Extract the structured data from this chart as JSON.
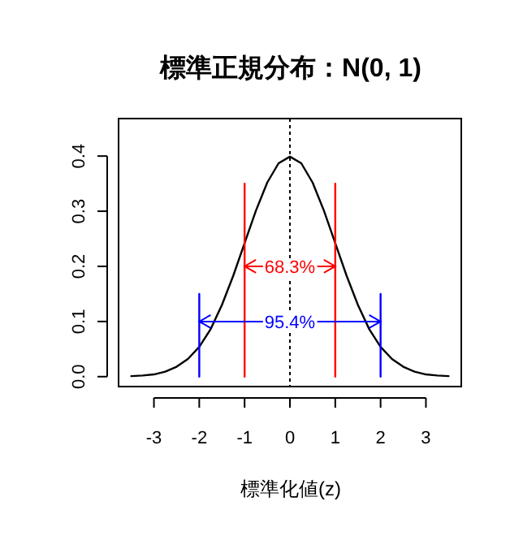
{
  "chart_data": {
    "type": "line",
    "title": "標準正規分布：N(0, 1)",
    "xlabel": "標準化値(z)",
    "xlim": [
      -3.78,
      3.78
    ],
    "ylim": [
      -0.018,
      0.468
    ],
    "xticks": [
      -3,
      -2,
      -1,
      0,
      1,
      2,
      3
    ],
    "yticks": [
      {
        "value": 0,
        "label": "0.0"
      },
      0.1,
      0.2,
      0.3,
      0.4
    ],
    "grid": false,
    "series": [
      {
        "color": "#000000",
        "line_style": "solid",
        "x": [
          -3.5,
          -3.25,
          -3,
          -2.75,
          -2.5,
          -2.25,
          -2,
          -1.75,
          -1.5,
          -1.25,
          -1,
          -0.75,
          -0.5,
          -0.25,
          0,
          0.25,
          0.5,
          0.75,
          1,
          1.25,
          1.5,
          1.75,
          2,
          2.25,
          2.5,
          2.75,
          3,
          3.25,
          3.5
        ],
        "values": [
          0.001,
          0.002,
          0.004,
          0.009,
          0.018,
          0.032,
          0.054,
          0.086,
          0.13,
          0.183,
          0.242,
          0.301,
          0.352,
          0.387,
          0.399,
          0.387,
          0.352,
          0.301,
          0.242,
          0.183,
          0.13,
          0.086,
          0.054,
          0.032,
          0.018,
          0.009,
          0.004,
          0.002,
          0.001
        ]
      },
      {
        "color": "#0000ff",
        "x": [
          -2,
          -2
        ],
        "values": [
          0,
          0.15
        ]
      },
      {
        "color": "#ff0000",
        "x": [
          -1,
          -1
        ],
        "values": [
          0,
          0.35
        ]
      },
      {
        "color": "#ff0000",
        "x": [
          1,
          1
        ],
        "values": [
          0,
          0.35
        ]
      },
      {
        "color": "#0000ff",
        "x": [
          2,
          2
        ],
        "values": [
          0,
          0.15
        ]
      },
      {
        "color": "#ff0000",
        "x": [
          -1,
          1
        ],
        "values": [
          0.2,
          0.2
        ]
      },
      {
        "color": "#0000ff",
        "x": [
          -2,
          2
        ],
        "values": [
          0.1,
          0.1
        ]
      }
    ],
    "ref_lines": [
      {
        "axis": "x",
        "value": 0,
        "color": "#000000",
        "line_style": "dotted"
      }
    ],
    "annotations": [
      {
        "text": "68.3%",
        "x": 0,
        "y": 0.2
      },
      {
        "text": "95.4%",
        "x": 0,
        "y": 0.1
      }
    ]
  }
}
